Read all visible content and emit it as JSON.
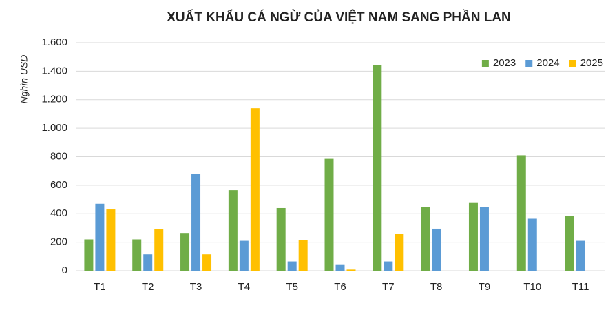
{
  "chart_data": {
    "type": "bar",
    "title": "XUẤT KHẨU CÁ NGỪ CỦA VIỆT NAM SANG PHẦN LAN",
    "y_label": "Nghìn  USD",
    "categories": [
      "T1",
      "T2",
      "T3",
      "T4",
      "T5",
      "T6",
      "T7",
      "T8",
      "T9",
      "T10",
      "T11"
    ],
    "series": [
      {
        "name": "2023",
        "color": "#70ad47",
        "values": [
          220,
          220,
          265,
          565,
          440,
          785,
          1445,
          445,
          480,
          810,
          385
        ]
      },
      {
        "name": "2024",
        "color": "#5b9bd5",
        "values": [
          470,
          115,
          680,
          210,
          65,
          45,
          65,
          295,
          445,
          365,
          210
        ]
      },
      {
        "name": "2025",
        "color": "#ffc000",
        "values": [
          430,
          290,
          115,
          1140,
          215,
          8,
          260,
          null,
          null,
          null,
          null
        ]
      }
    ],
    "ylim": [
      0,
      1600
    ],
    "yticks": [
      0,
      200,
      400,
      600,
      800,
      {
        "value": 1000,
        "label": "1.000"
      },
      {
        "value": 1200,
        "label": "1.200"
      },
      {
        "value": 1400,
        "label": "1.400"
      },
      {
        "value": 1600,
        "label": "1.600"
      }
    ],
    "grid": true,
    "legend": "top-right"
  }
}
